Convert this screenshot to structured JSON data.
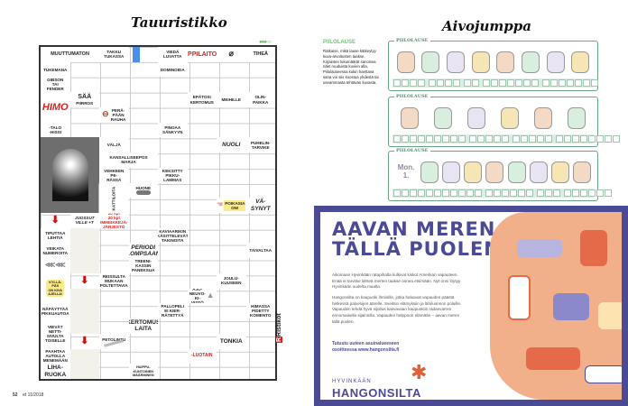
{
  "left_page": {
    "title": "Tauuristikko",
    "difficulty": "●●●○○",
    "brand": "Ristikot",
    "page_number": "52",
    "issue": "et 11/2018",
    "clues": [
      "MUUTTUMATON",
      "TAKKU\nTUKASSA",
      "VIEDÄ\nLUVATTA",
      "OPPILAITOS",
      "TIHEÄ",
      "TUKEMANA",
      "DOMINOIDA",
      "GIBSON\nTAI\nFENDER",
      "SÄÄ",
      "PIIRROS",
      "EPÄTOSI\nKERTOMUS",
      "MEIHILLE",
      "OLIN-\nPAIKKA",
      "HIMO",
      "PERÄ-\nPÄÄN\nRAUHA",
      "-TALO\n-HISSI",
      "PINOAA\nSÄNKYYN",
      "VÄLJÄ",
      "NUOLI",
      "PUHELIN-\nTARVIKE",
      "KANSALLISEEPOS\nMARJA",
      "VEHKEEN\nPE-\nRÄSSÄ",
      "KEKSITTY\nPIKKU-\nLAMMAS",
      "KATTILOITA",
      "HUONE",
      "POIKASIA\nON!",
      "VÄ-\nSYNYT",
      "JUOSSUT\nVILLE +T",
      "20 kpl\n20 kpl\nIMMEIKKEJÄ-\nJÄRJESTÖ",
      "TIPUTTAA\nLEHTIÄ",
      "KAVIAARIKIN\nKÄSITTELEVÄT\nTAKINOITA",
      "VEIKATA\nNUMEROITA",
      "PERIODI\nLOMPSAAN",
      "TAIVALTAA",
      "TREENI-\nKASSIN\nPANEKSUA",
      "REISSULTA\nMUKAAN\nPOLTETTAVIA",
      "JOULU-\nKUUSEEN",
      "KYLLÄ-\nPÄS\nON KIVA\nAJELLA!",
      "AJO-\nNEUVO-\nKI-\nVISTÖ",
      "NÄPÄYTTÄÄ\nPIKKUAUTOA",
      "PALLOPELI\nEI KIER-\nRÄTETTYÄ",
      "HIMASSA\nPIDETTY\nKOMENTO",
      "VIEVÄT\nNETTI-\nSIVULTA\nTOISELLE",
      "KERTOMUS\nLAITA",
      "PETOLINTU",
      "TONKIA",
      "PAAHTAA\nAUTOLLA\nMENEMÄÄN",
      "-LUOTAIN",
      "LIHA-\nRUOKA",
      "HUIPPU-\nKUNTOINEN\nMÄÄRMINEN"
    ],
    "arrow_color": "#d01010",
    "accent_red": "#e02020"
  },
  "right_page": {
    "title": "Aivojumppa",
    "sidebar": {
      "heading": "PIILOLAUSE",
      "text": "Ratkaise, mikä lause kätkeytyy kuva-arvoitusten taakse. Kirjainten lukumäärät sanoissa näet ruuduista kuvien alla.\n    Piilolauseessa kukin haettava sana voi siis koostua yhdestä tai useammasta tehtävän kuvasta."
    },
    "puzzles": [
      {
        "label": "PIILOLAUSE",
        "pictures": [
          "knife",
          "t-shirt",
          "equals-sign",
          "sun-cloud",
          "miner",
          "armchair",
          "book",
          "cat"
        ],
        "answer_groups": [
          4,
          4,
          2,
          7,
          7
        ]
      },
      {
        "label": "PIILOLAUSE",
        "pictures": [
          "potatoes",
          "mushrooms",
          "bread",
          "cow",
          "basket",
          "sunset"
        ],
        "answer_groups": [
          9,
          5,
          5,
          8
        ]
      },
      {
        "label": "PIILOLAUSE",
        "pictures": [
          "Mon. 1.",
          "father-child",
          "sun-cloud",
          "rabbit",
          "bone",
          "man-face",
          "horse",
          "hamster",
          "knife"
        ],
        "answer_groups": [
          11,
          6,
          3,
          6
        ]
      }
    ],
    "accent_green": "#6aa684"
  },
  "ad": {
    "headline": "AAVAN MEREN\nTÄLLÄ PUOLEN.",
    "paragraphs": [
      "Aikoinaan Hyvinkään ratapihalta kulkivat kiskot Amerikan vapauteen. Enää ei tarvitse lähteä merten taakse onnea etsimään. Nyt onni löytyy Hyvinkään uudelta maalta.",
      "Hangonsilta on kaupunki ihmisille, jotka haluavat vapauden päästä hetkessä palvelujen äärelle, Sveitsin elämyksiin ja lähiluonnon poluille. Vapauden tehdä hyvä sijoitus kasvavaan kaupunkiin radanvarren erinomaisella sijainnilla. Vapauden helppoon elämään – aavan meren tällä puolen."
    ],
    "cta": "Tutustu uuteen asuinalueeseen\nosoitteessa www.hangonsilta.fi",
    "logo_sub": "HYVINKÄÄN",
    "logo_main": "HANGONSILTA",
    "brand_color": "#4b4a97"
  }
}
